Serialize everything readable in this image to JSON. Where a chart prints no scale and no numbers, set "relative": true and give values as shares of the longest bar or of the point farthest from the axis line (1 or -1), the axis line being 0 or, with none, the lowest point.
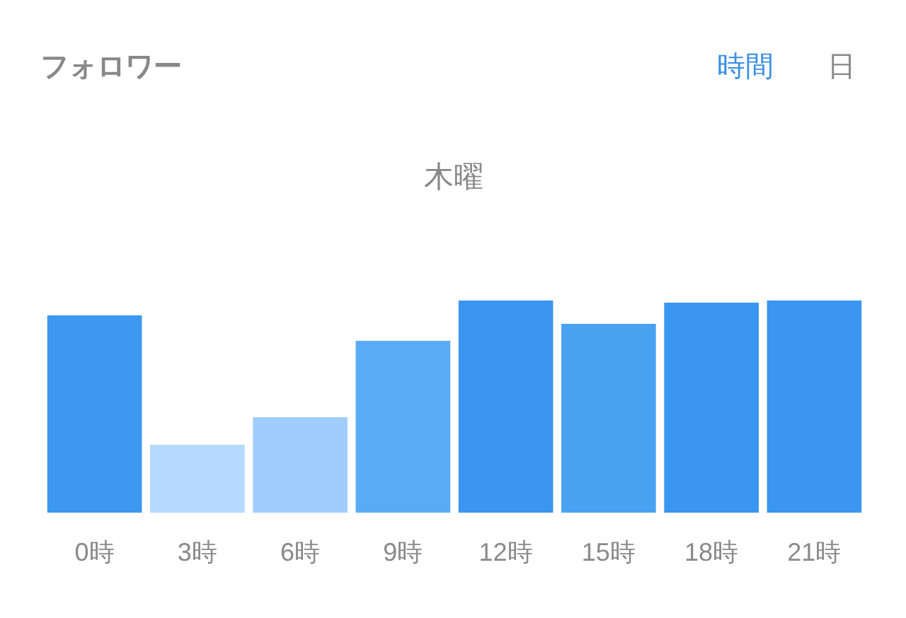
{
  "chart_data": {
    "type": "bar",
    "title": "フォロワー",
    "subtitle": "木曜",
    "annotations": [
      "時間",
      "日"
    ],
    "categories": [
      "0時",
      "3時",
      "6時",
      "9時",
      "12時",
      "15時",
      "18時",
      "21時"
    ],
    "values": [
      0.93,
      0.32,
      0.45,
      0.81,
      1,
      0.89,
      0.99,
      1
    ],
    "colors": [
      "#3d98f0",
      "#b5dafd",
      "#a0cefc",
      "#5aabf5",
      "#3a96f0",
      "#4aa2f3",
      "#3a96f0",
      "#3a96f0"
    ],
    "relative": true,
    "grid": false
  }
}
